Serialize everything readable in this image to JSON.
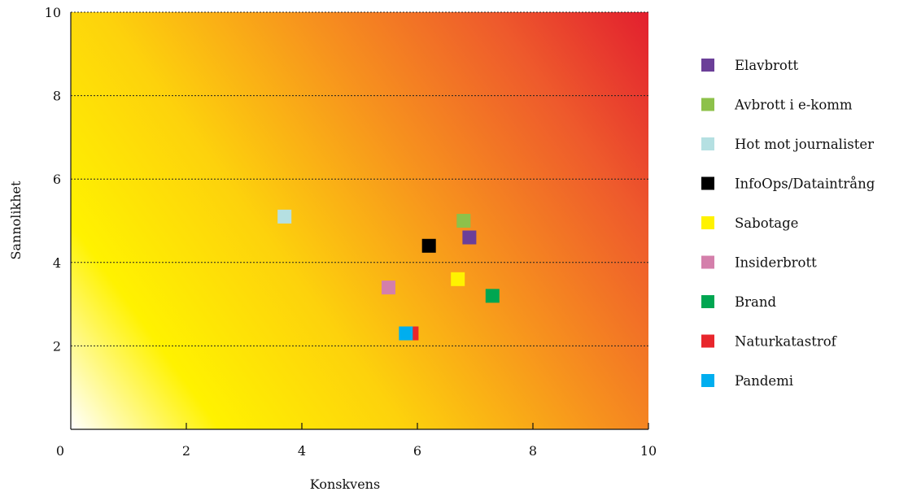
{
  "chart_data": {
    "type": "scatter",
    "title": "",
    "xlabel": "Konskvens",
    "ylabel": "Sannolikhet",
    "xlim": [
      0,
      10
    ],
    "ylim": [
      0,
      10
    ],
    "x_ticks": [
      "0",
      "2",
      "4",
      "6",
      "8",
      "10"
    ],
    "y_ticks": [
      "2",
      "4",
      "6",
      "8",
      "10"
    ],
    "grid": "horizontal dashed",
    "background": "gradient white-yellow-orange-red",
    "legend_position": "right",
    "series": [
      {
        "name": "Elavbrott",
        "color": "#6b3f98",
        "x": 6.9,
        "y": 4.6
      },
      {
        "name": "Avbrott i e-komm",
        "color": "#8dc14a",
        "x": 6.8,
        "y": 5.0
      },
      {
        "name": "Hot mot journalister",
        "color": "#b5e0e2",
        "x": 3.7,
        "y": 5.1
      },
      {
        "name": "InfoOps/Dataintrång",
        "color": "#000000",
        "x": 6.2,
        "y": 4.4
      },
      {
        "name": "Sabotage",
        "color": "#fff200",
        "x": 6.7,
        "y": 3.6
      },
      {
        "name": "Insiderbrott",
        "color": "#d47fab",
        "x": 5.5,
        "y": 3.4
      },
      {
        "name": "Brand",
        "color": "#00a651",
        "x": 7.3,
        "y": 3.2
      },
      {
        "name": "Naturkatastrof",
        "color": "#e8262c",
        "x": 5.9,
        "y": 2.3
      },
      {
        "name": "Pandemi",
        "color": "#00aeef",
        "x": 5.8,
        "y": 2.3
      }
    ]
  }
}
